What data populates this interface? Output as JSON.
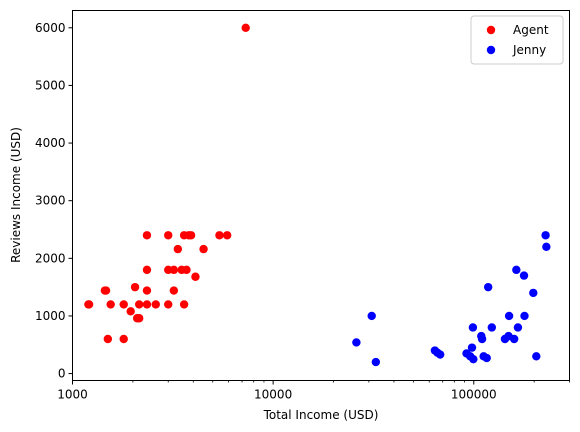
{
  "chart_data": {
    "type": "scatter",
    "xlabel": "Total Income (USD)",
    "ylabel": "Reviews Income (USD)",
    "x_scale": "log",
    "xlim": [
      1000,
      300000
    ],
    "ylim": [
      -120,
      6300
    ],
    "x_ticks": [
      {
        "value": 1000,
        "label": "1000"
      },
      {
        "value": 10000,
        "label": "10000"
      },
      {
        "value": 100000,
        "label": "100000"
      }
    ],
    "y_ticks": [
      {
        "value": 0,
        "label": "0"
      },
      {
        "value": 1000,
        "label": "1000"
      },
      {
        "value": 2000,
        "label": "2000"
      },
      {
        "value": 3000,
        "label": "3000"
      },
      {
        "value": 4000,
        "label": "4000"
      },
      {
        "value": 5000,
        "label": "5000"
      },
      {
        "value": 6000,
        "label": "6000"
      }
    ],
    "legend_position": "top-right",
    "grid": false,
    "series": [
      {
        "name": "Agent",
        "color": "#ff0000",
        "points": [
          [
            7300,
            6000
          ],
          [
            1200,
            1200
          ],
          [
            1210,
            1200
          ],
          [
            1450,
            1440
          ],
          [
            1470,
            1440
          ],
          [
            1500,
            600
          ],
          [
            1550,
            1200
          ],
          [
            1800,
            600
          ],
          [
            1800,
            1200
          ],
          [
            1950,
            1080
          ],
          [
            2050,
            1500
          ],
          [
            2100,
            960
          ],
          [
            2150,
            1200
          ],
          [
            2150,
            960
          ],
          [
            2350,
            2400
          ],
          [
            2350,
            1800
          ],
          [
            2350,
            1440
          ],
          [
            2350,
            1200
          ],
          [
            2600,
            1200
          ],
          [
            3000,
            2400
          ],
          [
            3000,
            1800
          ],
          [
            3000,
            1200
          ],
          [
            3200,
            1800
          ],
          [
            3200,
            1440
          ],
          [
            3350,
            2160
          ],
          [
            3500,
            1800
          ],
          [
            3600,
            2400
          ],
          [
            3600,
            1200
          ],
          [
            3700,
            1800
          ],
          [
            3800,
            2400
          ],
          [
            3900,
            2400
          ],
          [
            4100,
            1680
          ],
          [
            4500,
            2160
          ],
          [
            5400,
            2400
          ],
          [
            5900,
            2400
          ]
        ]
      },
      {
        "name": "Jenny",
        "color": "#0000ff",
        "points": [
          [
            26000,
            540
          ],
          [
            31000,
            1000
          ],
          [
            32500,
            200
          ],
          [
            64000,
            400
          ],
          [
            66000,
            360
          ],
          [
            68000,
            330
          ],
          [
            92000,
            350
          ],
          [
            96000,
            300
          ],
          [
            98000,
            450
          ],
          [
            99000,
            800
          ],
          [
            99500,
            250
          ],
          [
            109000,
            650
          ],
          [
            110000,
            600
          ],
          [
            112000,
            300
          ],
          [
            116000,
            270
          ],
          [
            118000,
            1500
          ],
          [
            123000,
            800
          ],
          [
            143000,
            600
          ],
          [
            149000,
            650
          ],
          [
            150000,
            1000
          ],
          [
            159000,
            600
          ],
          [
            163000,
            1800
          ],
          [
            166000,
            800
          ],
          [
            178000,
            1700
          ],
          [
            179000,
            1000
          ],
          [
            198000,
            1400
          ],
          [
            205000,
            300
          ],
          [
            228000,
            2400
          ],
          [
            230000,
            2200
          ]
        ]
      }
    ]
  }
}
